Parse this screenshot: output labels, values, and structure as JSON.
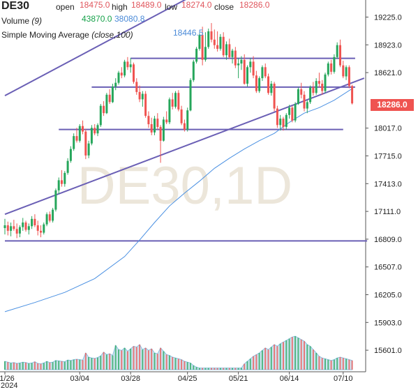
{
  "header": {
    "symbol": "DE30",
    "open_label": "open",
    "open_value": "18475.0",
    "high_label": "high",
    "high_value": "18489.0",
    "low_label": "low",
    "low_value": "18274.0",
    "close_label": "close",
    "close_value": "18286.0",
    "volume_label": "Volume",
    "volume_period": "(9)",
    "volume_value_1": "43870.0",
    "volume_value_2": "38080.8",
    "sma_label": "Simple Moving Average",
    "sma_params": "(close,100)",
    "sma_value": "18446.5"
  },
  "watermark": "DE30,1D",
  "price_tag": "18286.0",
  "colors": {
    "up": "#26a65b",
    "down": "#ef5350",
    "sma": "#4a90e2",
    "trendline": "#6a5fb5",
    "volume": "#a6cfe8"
  },
  "chart_data": {
    "type": "candlestick",
    "ylim": [
      15450,
      19350
    ],
    "y_ticks": [
      19225.0,
      18923.0,
      18621.0,
      18017.0,
      17715.0,
      17413.0,
      17111.0,
      16809.0,
      16507.0,
      16205.0,
      15903.0,
      15601.0
    ],
    "y_tick_labels": [
      "19225.0",
      "18923.0",
      "18621.0",
      "18017.0",
      "17715.0",
      "17413.0",
      "17111.0",
      "16809.0",
      "16507.0",
      "16205.0",
      "15903.0",
      "15601.0"
    ],
    "x_ticks": [
      "01/26",
      "03/04",
      "03/28",
      "04/25",
      "05/21",
      "06/14",
      "07/10"
    ],
    "x_tick_index": [
      0,
      25,
      42,
      61,
      78,
      95,
      113
    ],
    "year_label": "2024",
    "ohlc": [
      [
        16930,
        17030,
        16860,
        16960
      ],
      [
        16960,
        17000,
        16850,
        16900
      ],
      [
        16900,
        16990,
        16840,
        16950
      ],
      [
        16950,
        17020,
        16900,
        16920
      ],
      [
        16920,
        16980,
        16820,
        16870
      ],
      [
        16870,
        16960,
        16830,
        16940
      ],
      [
        16940,
        17040,
        16900,
        16990
      ],
      [
        16990,
        17010,
        16890,
        16910
      ],
      [
        16910,
        16980,
        16860,
        16950
      ],
      [
        16950,
        17060,
        16920,
        17030
      ],
      [
        17030,
        17080,
        16940,
        16960
      ],
      [
        16960,
        17010,
        16850,
        16900
      ],
      [
        16900,
        16960,
        16830,
        16880
      ],
      [
        16880,
        16990,
        16860,
        16970
      ],
      [
        16970,
        17100,
        16950,
        17080
      ],
      [
        17080,
        17110,
        16990,
        17010
      ],
      [
        17010,
        17150,
        16990,
        17130
      ],
      [
        17130,
        17360,
        17110,
        17340
      ],
      [
        17340,
        17480,
        17300,
        17450
      ],
      [
        17450,
        17560,
        17380,
        17410
      ],
      [
        17410,
        17550,
        17380,
        17530
      ],
      [
        17530,
        17690,
        17510,
        17660
      ],
      [
        17660,
        17820,
        17640,
        17790
      ],
      [
        17790,
        17960,
        17770,
        17930
      ],
      [
        17930,
        18020,
        17860,
        17880
      ],
      [
        17880,
        18060,
        17860,
        18040
      ],
      [
        18040,
        18100,
        17950,
        17980
      ],
      [
        17980,
        18010,
        17680,
        17720
      ],
      [
        17720,
        17880,
        17690,
        17850
      ],
      [
        17850,
        18050,
        17830,
        18020
      ],
      [
        18020,
        18060,
        17940,
        17960
      ],
      [
        17960,
        18070,
        17930,
        18050
      ],
      [
        18050,
        18280,
        18030,
        18260
      ],
      [
        18260,
        18310,
        18150,
        18180
      ],
      [
        18180,
        18400,
        18170,
        18380
      ],
      [
        18380,
        18440,
        18280,
        18300
      ],
      [
        18300,
        18500,
        18290,
        18470
      ],
      [
        18470,
        18560,
        18430,
        18510
      ],
      [
        18510,
        18640,
        18490,
        18620
      ],
      [
        18620,
        18680,
        18560,
        18590
      ],
      [
        18590,
        18760,
        18570,
        18740
      ],
      [
        18740,
        18790,
        18650,
        18680
      ],
      [
        18680,
        18780,
        18620,
        18710
      ],
      [
        18710,
        18730,
        18500,
        18520
      ],
      [
        18520,
        18560,
        18380,
        18410
      ],
      [
        18410,
        18480,
        18300,
        18330
      ],
      [
        18330,
        18420,
        18250,
        18390
      ],
      [
        18390,
        18420,
        18130,
        18150
      ],
      [
        18150,
        18200,
        18020,
        18060
      ],
      [
        18060,
        18130,
        17940,
        17970
      ],
      [
        17970,
        18150,
        17940,
        18120
      ],
      [
        18120,
        18180,
        18000,
        18030
      ],
      [
        18030,
        18050,
        17640,
        17880
      ],
      [
        17880,
        18140,
        17870,
        18110
      ],
      [
        18110,
        18200,
        18060,
        18080
      ],
      [
        18080,
        18350,
        18060,
        18330
      ],
      [
        18330,
        18400,
        18220,
        18250
      ],
      [
        18250,
        18420,
        18230,
        18400
      ],
      [
        18400,
        18430,
        18200,
        18220
      ],
      [
        18220,
        18260,
        18050,
        18070
      ],
      [
        18070,
        18110,
        17980,
        18000
      ],
      [
        18000,
        18240,
        17980,
        18210
      ],
      [
        18210,
        18560,
        18200,
        18540
      ],
      [
        18540,
        18760,
        18520,
        18740
      ],
      [
        18740,
        18900,
        18720,
        18880
      ],
      [
        18880,
        19050,
        18860,
        19030
      ],
      [
        19030,
        19120,
        18700,
        18760
      ],
      [
        18760,
        19060,
        18740,
        18900
      ],
      [
        18900,
        19100,
        18880,
        19070
      ],
      [
        19070,
        19160,
        18950,
        18980
      ],
      [
        18980,
        19090,
        18880,
        18920
      ],
      [
        18920,
        19070,
        18850,
        18880
      ],
      [
        18880,
        19040,
        18860,
        19010
      ],
      [
        19010,
        19060,
        18790,
        18810
      ],
      [
        18810,
        18960,
        18760,
        18930
      ],
      [
        18930,
        18990,
        18770,
        18790
      ],
      [
        18790,
        18880,
        18720,
        18860
      ],
      [
        18860,
        18900,
        18670,
        18700
      ],
      [
        18700,
        18780,
        18560,
        18720
      ],
      [
        18720,
        18800,
        18650,
        18760
      ],
      [
        18760,
        18820,
        18490,
        18500
      ],
      [
        18500,
        18700,
        18470,
        18680
      ],
      [
        18680,
        18780,
        18620,
        18740
      ],
      [
        18740,
        18800,
        18560,
        18590
      ],
      [
        18590,
        18640,
        18400,
        18420
      ],
      [
        18420,
        18580,
        18400,
        18560
      ],
      [
        18560,
        18700,
        18530,
        18680
      ],
      [
        18680,
        18720,
        18560,
        18580
      ],
      [
        18580,
        18610,
        18380,
        18400
      ],
      [
        18400,
        18530,
        18370,
        18500
      ],
      [
        18500,
        18520,
        18200,
        18230
      ],
      [
        18230,
        18260,
        18020,
        18050
      ],
      [
        18050,
        18160,
        17990,
        18120
      ],
      [
        18120,
        18140,
        17990,
        18030
      ],
      [
        18030,
        18180,
        18000,
        18160
      ],
      [
        18160,
        18270,
        18120,
        18240
      ],
      [
        18240,
        18260,
        18080,
        18100
      ],
      [
        18100,
        18300,
        18080,
        18280
      ],
      [
        18280,
        18460,
        18270,
        18440
      ],
      [
        18440,
        18510,
        18340,
        18380
      ],
      [
        18380,
        18420,
        18200,
        18230
      ],
      [
        18230,
        18320,
        18180,
        18300
      ],
      [
        18300,
        18480,
        18280,
        18460
      ],
      [
        18460,
        18520,
        18370,
        18400
      ],
      [
        18400,
        18560,
        18380,
        18530
      ],
      [
        18530,
        18620,
        18460,
        18500
      ],
      [
        18500,
        18540,
        18380,
        18420
      ],
      [
        18420,
        18620,
        18400,
        18600
      ],
      [
        18600,
        18740,
        18580,
        18720
      ],
      [
        18720,
        18760,
        18600,
        18630
      ],
      [
        18630,
        18820,
        18610,
        18790
      ],
      [
        18790,
        18950,
        18770,
        18920
      ],
      [
        18920,
        18980,
        18680,
        18700
      ],
      [
        18700,
        18750,
        18560,
        18580
      ],
      [
        18580,
        18700,
        18540,
        18680
      ],
      [
        18680,
        18700,
        18450,
        18475
      ],
      [
        18475,
        18489,
        18274,
        18286
      ]
    ],
    "sma_keypoints": [
      [
        0,
        16020
      ],
      [
        10,
        16120
      ],
      [
        20,
        16230
      ],
      [
        30,
        16380
      ],
      [
        40,
        16620
      ],
      [
        45,
        16800
      ],
      [
        50,
        16990
      ],
      [
        55,
        17170
      ],
      [
        60,
        17310
      ],
      [
        65,
        17440
      ],
      [
        70,
        17580
      ],
      [
        75,
        17690
      ],
      [
        80,
        17790
      ],
      [
        85,
        17880
      ],
      [
        90,
        17960
      ],
      [
        95,
        18080
      ],
      [
        100,
        18180
      ],
      [
        105,
        18240
      ],
      [
        110,
        18320
      ],
      [
        116,
        18446.5
      ]
    ],
    "volume": [
      20,
      18,
      16,
      17,
      15,
      16,
      18,
      17,
      15,
      16,
      19,
      15,
      14,
      16,
      20,
      17,
      18,
      22,
      21,
      20,
      19,
      23,
      22,
      24,
      25,
      24,
      23,
      40,
      30,
      28,
      27,
      29,
      33,
      42,
      36,
      38,
      34,
      58,
      48,
      46,
      52,
      44,
      50,
      56,
      54,
      60,
      48,
      52,
      46,
      50,
      40,
      38,
      52,
      44,
      36,
      34,
      30,
      28,
      26,
      24,
      20,
      18,
      16,
      10,
      6,
      4,
      4,
      4,
      4,
      4,
      4,
      4,
      4,
      4,
      4,
      4,
      4,
      4,
      4,
      4,
      14,
      20,
      26,
      32,
      36,
      40,
      46,
      52,
      48,
      54,
      60,
      56,
      62,
      66,
      70,
      74,
      78,
      80,
      76,
      72,
      68,
      60,
      56,
      48,
      40,
      32,
      28,
      26,
      24,
      22,
      24,
      28,
      30,
      28,
      26,
      24,
      22
    ],
    "volume_ylim": [
      0,
      100
    ],
    "hlines": [
      18776,
      18463,
      18002,
      16790
    ],
    "trendlines": [
      [
        [
          0,
          18370
        ],
        [
          116,
          20380
        ]
      ],
      [
        [
          0,
          17080
        ],
        [
          120,
          18560
        ]
      ]
    ],
    "hlines_span": [
      [
        42,
        117
      ],
      [
        29,
        117
      ],
      [
        18,
        113
      ],
      [
        0,
        121
      ]
    ]
  }
}
